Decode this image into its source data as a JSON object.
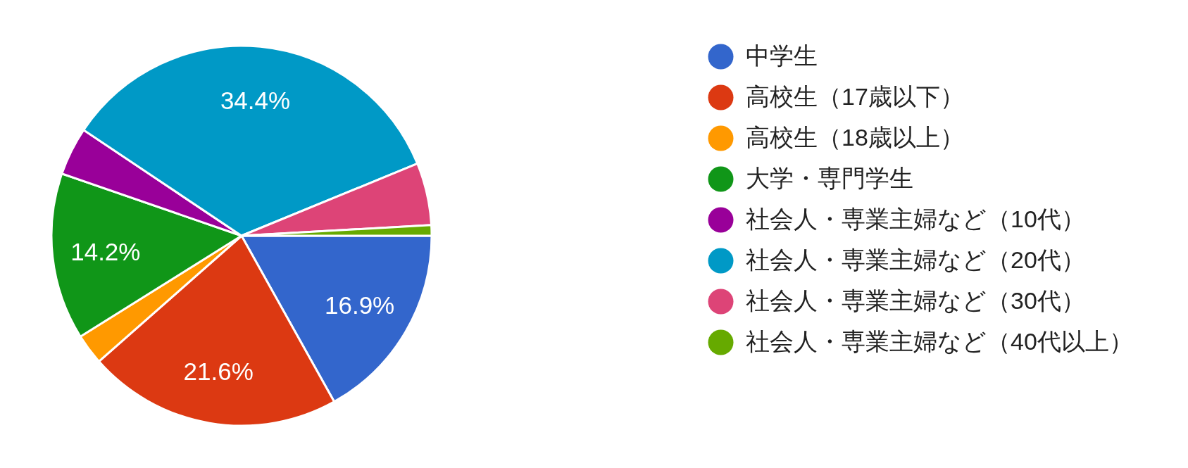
{
  "chart_data": {
    "type": "pie",
    "categories": [
      "中学生",
      "高校生（17歳以下）",
      "高校生（18歳以上）",
      "大学・専門学生",
      "社会人・専業主婦など（10代）",
      "社会人・専業主婦など（20代）",
      "社会人・専業主婦など（30代）",
      "社会人・専業主婦など（40代以上）"
    ],
    "values": [
      16.9,
      21.6,
      2.6,
      14.2,
      4.1,
      34.4,
      5.3,
      0.9
    ],
    "colors": [
      "#3366cc",
      "#dc3912",
      "#ff9900",
      "#109618",
      "#990099",
      "#0099c6",
      "#dd4477",
      "#66aa00"
    ],
    "value_labels": [
      "16.9%",
      "21.6%",
      null,
      "14.2%",
      null,
      "34.4%",
      null,
      null
    ],
    "legend": "right"
  }
}
